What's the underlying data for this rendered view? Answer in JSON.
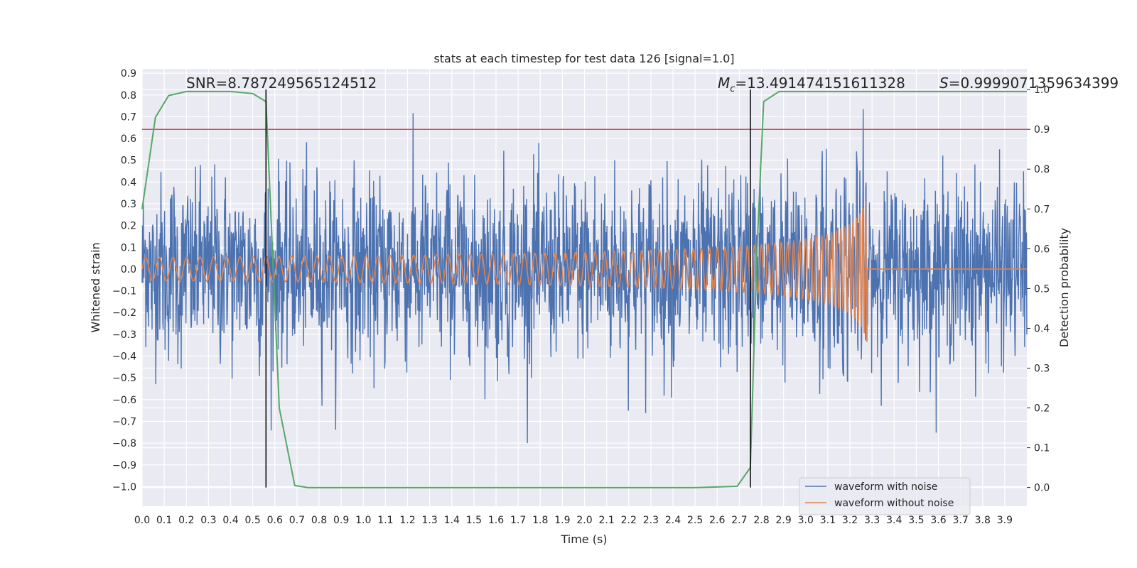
{
  "chart_data": {
    "type": "line",
    "title": "stats at each timestep for test data 126 [signal=1.0]",
    "xlabel": "Time (s)",
    "ylabel": "Whitened strain",
    "y2label": "Detection probability",
    "xlim": [
      0.0,
      4.0
    ],
    "ylim": [
      -1.09,
      0.92
    ],
    "y2lim": [
      -0.047,
      1.052
    ],
    "xticks": [
      "0.0",
      "0.1",
      "0.2",
      "0.3",
      "0.4",
      "0.5",
      "0.6",
      "0.7",
      "0.8",
      "0.9",
      "1.0",
      "1.1",
      "1.2",
      "1.3",
      "1.4",
      "1.5",
      "1.6",
      "1.7",
      "1.8",
      "1.9",
      "2.0",
      "2.1",
      "2.2",
      "2.3",
      "2.4",
      "2.5",
      "2.6",
      "2.7",
      "2.8",
      "2.9",
      "3.0",
      "3.1",
      "3.2",
      "3.3",
      "3.4",
      "3.5",
      "3.6",
      "3.7",
      "3.8",
      "3.9"
    ],
    "yticks": [
      "0.9",
      "0.8",
      "0.7",
      "0.6",
      "0.5",
      "0.4",
      "0.3",
      "0.2",
      "0.1",
      "0.0",
      "−0.1",
      "−0.2",
      "−0.3",
      "−0.4",
      "−0.5",
      "−0.6",
      "−0.7",
      "−0.8",
      "−0.9",
      "−1.0"
    ],
    "y2ticks": [
      "1.0",
      "0.9",
      "0.8",
      "0.7",
      "0.6",
      "0.5",
      "0.4",
      "0.3",
      "0.2",
      "0.1",
      "0.0"
    ],
    "grid": true,
    "legend_position": "lower-right",
    "annotations": {
      "snr": "SNR=8.787249565124512",
      "mc_symbol": "M",
      "mc_subscript": "c",
      "mc_value": "=13.491474151611328",
      "s_symbol": "S",
      "s_value": "=0.9999071359634399"
    },
    "vlines_x": [
      0.56,
      2.75
    ],
    "threshold_probability": 0.9,
    "series": [
      {
        "name": "waveform with noise",
        "color": "#4c72b0",
        "kind": "noise",
        "amplitude_range": [
          -0.8,
          0.83
        ]
      },
      {
        "name": "waveform without noise",
        "color": "#dd8452",
        "kind": "chirp",
        "t_merger": 3.28,
        "peak_amplitude": 0.35
      },
      {
        "color": "#55a868",
        "axis": "right",
        "x": [
          0.0,
          0.06,
          0.12,
          0.2,
          0.3,
          0.4,
          0.5,
          0.56,
          0.62,
          0.69,
          0.75,
          0.8,
          1.0,
          1.5,
          2.0,
          2.5,
          2.69,
          2.75,
          2.78,
          2.81,
          2.88,
          3.0,
          3.5,
          4.0
        ],
        "y": [
          0.7,
          0.93,
          0.985,
          0.995,
          0.995,
          0.995,
          0.99,
          0.97,
          0.2,
          0.005,
          0.0,
          0.0,
          0.0,
          0.0,
          0.0,
          0.0,
          0.003,
          0.05,
          0.6,
          0.97,
          0.995,
          0.995,
          0.995,
          0.995
        ]
      }
    ],
    "colors": {
      "plot_bg": "#eaeaf2",
      "grid": "#ffffff",
      "threshold": "#c44e52",
      "vline": "#000000"
    }
  }
}
